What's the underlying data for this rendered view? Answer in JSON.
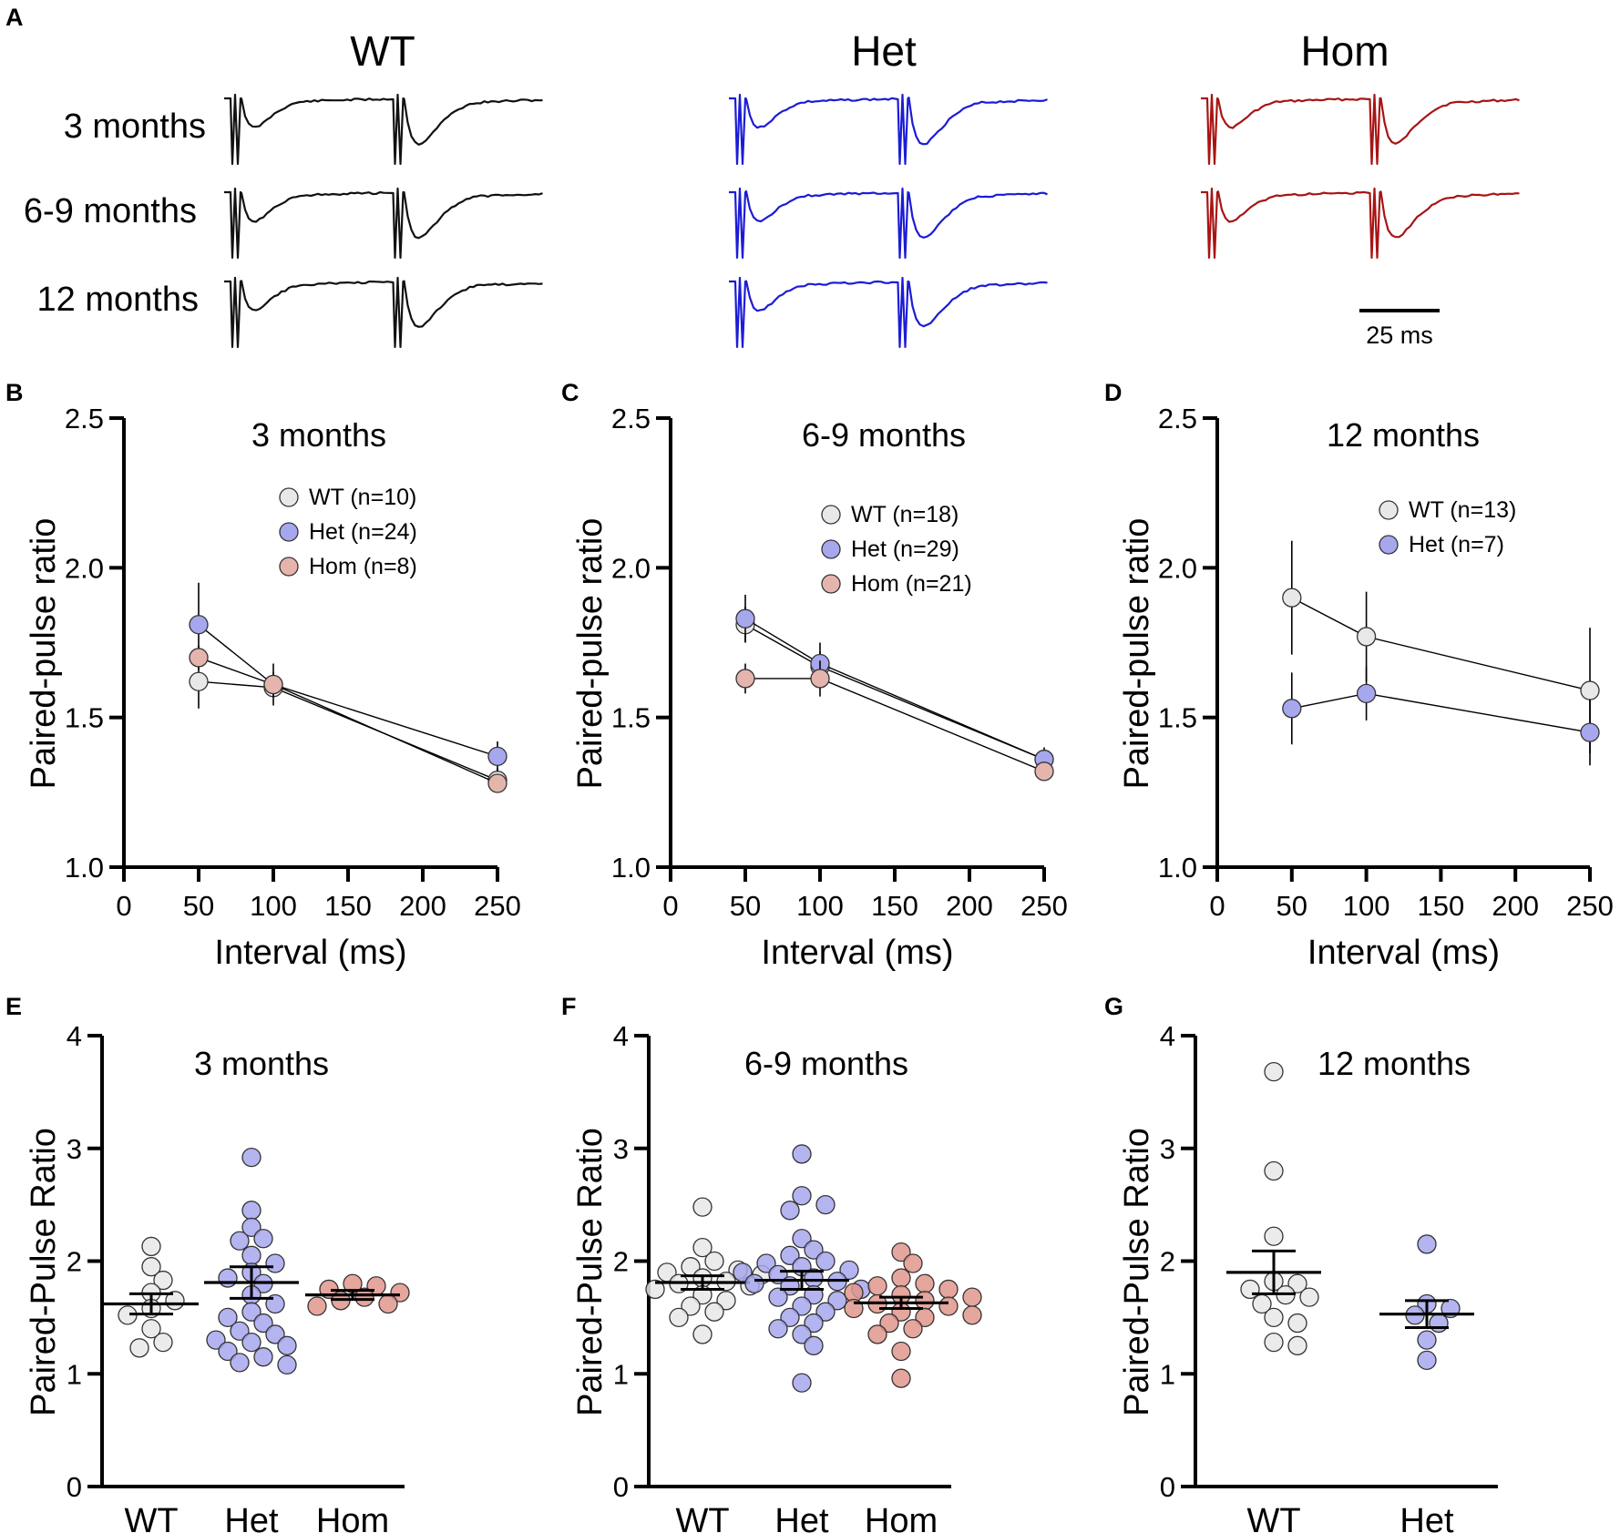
{
  "colors": {
    "WT": "#e8e8e8",
    "Het": "#a7a7ee",
    "Hom": "#e5b4ad",
    "Hom_dot": "#e0968c",
    "trace_WT": "#111111",
    "trace_Het": "#1c1cd6",
    "trace_Hom": "#a81414"
  },
  "panel_a": {
    "letter": "A",
    "columns": [
      "WT",
      "Het",
      "Hom"
    ],
    "rows": [
      "3 months",
      "6-9 months",
      "12 months"
    ],
    "scale_bar_label": "25 ms",
    "traces_present": [
      [
        "WT",
        "Het",
        "Hom"
      ],
      [
        "WT",
        "Het",
        "Hom"
      ],
      [
        "WT",
        "Het"
      ]
    ]
  },
  "chart_data": [
    {
      "id": "B",
      "letter": "B",
      "type": "line",
      "title": "3 months",
      "xlabel": "Interval (ms)",
      "ylabel": "Paired-pulse ratio",
      "x": [
        50,
        100,
        250
      ],
      "xticks": [
        "0",
        "50",
        "100",
        "150",
        "200",
        "250"
      ],
      "yticks": [
        "1.0",
        "1.5",
        "2.0",
        "2.5"
      ],
      "xlim": [
        0,
        250
      ],
      "ylim": [
        1.0,
        2.5
      ],
      "legend": "top-right",
      "series": [
        {
          "group": "WT",
          "name": "WT (n=10)",
          "values": [
            1.62,
            1.6,
            1.29
          ],
          "err": [
            0.09,
            0.03,
            0.04
          ]
        },
        {
          "group": "Het",
          "name": "Het (n=24)",
          "values": [
            1.81,
            1.61,
            1.37
          ],
          "err": [
            0.14,
            0.07,
            0.05
          ]
        },
        {
          "group": "Hom",
          "name": "Hom (n=8)",
          "values": [
            1.7,
            1.61,
            1.28
          ],
          "err": [
            0.04,
            0.04,
            0.03
          ]
        }
      ]
    },
    {
      "id": "C",
      "letter": "C",
      "type": "line",
      "title": "6-9 months",
      "xlabel": "Interval (ms)",
      "ylabel": "Paired-pulse ratio",
      "x": [
        50,
        100,
        250
      ],
      "xticks": [
        "0",
        "50",
        "100",
        "150",
        "200",
        "250"
      ],
      "yticks": [
        "1.0",
        "1.5",
        "2.0",
        "2.5"
      ],
      "xlim": [
        0,
        250
      ],
      "ylim": [
        1.0,
        2.5
      ],
      "legend": "right",
      "series": [
        {
          "group": "WT",
          "name": "WT (n=18)",
          "values": [
            1.81,
            1.67,
            1.36
          ],
          "err": [
            0.06,
            0.05,
            0.03
          ]
        },
        {
          "group": "Het",
          "name": "Het (n=29)",
          "values": [
            1.83,
            1.68,
            1.36
          ],
          "err": [
            0.08,
            0.07,
            0.04
          ]
        },
        {
          "group": "Hom",
          "name": "Hom (n=21)",
          "values": [
            1.63,
            1.63,
            1.32
          ],
          "err": [
            0.05,
            0.06,
            0.03
          ]
        }
      ]
    },
    {
      "id": "D",
      "letter": "D",
      "type": "line",
      "title": "12 months",
      "xlabel": "Interval (ms)",
      "ylabel": "Paired-pulse ratio",
      "x": [
        50,
        100,
        250
      ],
      "xticks": [
        "0",
        "50",
        "100",
        "150",
        "200",
        "250"
      ],
      "yticks": [
        "1.0",
        "1.5",
        "2.0",
        "2.5"
      ],
      "xlim": [
        0,
        250
      ],
      "ylim": [
        1.0,
        2.5
      ],
      "legend": "top-right",
      "series": [
        {
          "group": "WT",
          "name": "WT (n=13)",
          "values": [
            1.9,
            1.77,
            1.59
          ],
          "err": [
            0.19,
            0.15,
            0.21
          ]
        },
        {
          "group": "Het",
          "name": "Het (n=7)",
          "values": [
            1.53,
            1.58,
            1.45
          ],
          "err": [
            0.12,
            0.09,
            0.11
          ]
        }
      ]
    },
    {
      "id": "E",
      "letter": "E",
      "type": "scatter",
      "title": "3 months",
      "xlabel": "",
      "ylabel": "Paired-Pulse Ratio",
      "categories": [
        "WT",
        "Het",
        "Hom"
      ],
      "yticks": [
        "0",
        "1",
        "2",
        "3",
        "4"
      ],
      "ylim": [
        0,
        4
      ],
      "groups": [
        {
          "group": "WT",
          "mean": 1.62,
          "sem": 0.09,
          "points": [
            2.13,
            1.95,
            1.83,
            1.72,
            1.65,
            1.58,
            1.52,
            1.4,
            1.28,
            1.23
          ]
        },
        {
          "group": "Het",
          "mean": 1.81,
          "sem": 0.14,
          "points": [
            2.92,
            2.45,
            2.3,
            2.2,
            2.18,
            2.05,
            1.98,
            1.9,
            1.85,
            1.8,
            1.7,
            1.62,
            1.55,
            1.5,
            1.45,
            1.38,
            1.35,
            1.3,
            1.28,
            1.25,
            1.2,
            1.15,
            1.1,
            1.08
          ]
        },
        {
          "group": "Hom",
          "mean": 1.7,
          "sem": 0.04,
          "points": [
            1.8,
            1.78,
            1.75,
            1.72,
            1.68,
            1.65,
            1.62,
            1.6
          ]
        }
      ]
    },
    {
      "id": "F",
      "letter": "F",
      "type": "scatter",
      "title": "6-9 months",
      "xlabel": "",
      "ylabel": "Paired-Pulse Ratio",
      "categories": [
        "WT",
        "Het",
        "Hom"
      ],
      "yticks": [
        "0",
        "1",
        "2",
        "3",
        "4"
      ],
      "ylim": [
        0,
        4
      ],
      "groups": [
        {
          "group": "WT",
          "mean": 1.81,
          "sem": 0.06,
          "points": [
            2.48,
            2.12,
            2.0,
            1.95,
            1.92,
            1.9,
            1.88,
            1.85,
            1.82,
            1.8,
            1.78,
            1.75,
            1.7,
            1.65,
            1.6,
            1.55,
            1.5,
            1.35
          ]
        },
        {
          "group": "Het",
          "mean": 1.83,
          "sem": 0.08,
          "points": [
            2.95,
            2.58,
            2.5,
            2.45,
            2.2,
            2.1,
            2.05,
            2.0,
            1.98,
            1.95,
            1.92,
            1.9,
            1.88,
            1.85,
            1.82,
            1.8,
            1.78,
            1.75,
            1.7,
            1.68,
            1.65,
            1.6,
            1.55,
            1.5,
            1.45,
            1.4,
            1.35,
            1.25,
            0.92
          ]
        },
        {
          "group": "Hom",
          "mean": 1.63,
          "sem": 0.05,
          "points": [
            2.08,
            1.98,
            1.85,
            1.8,
            1.78,
            1.75,
            1.72,
            1.7,
            1.68,
            1.65,
            1.62,
            1.6,
            1.58,
            1.55,
            1.52,
            1.5,
            1.45,
            1.4,
            1.35,
            1.2,
            0.96
          ]
        }
      ]
    },
    {
      "id": "G",
      "letter": "G",
      "type": "scatter",
      "title": "12 months",
      "xlabel": "",
      "ylabel": "Paired-Pulse Ratio",
      "categories": [
        "WT",
        "Het"
      ],
      "yticks": [
        "0",
        "1",
        "2",
        "3",
        "4"
      ],
      "ylim": [
        0,
        4
      ],
      "groups": [
        {
          "group": "WT",
          "mean": 1.9,
          "sem": 0.19,
          "points": [
            3.68,
            2.8,
            2.22,
            1.82,
            1.8,
            1.75,
            1.7,
            1.68,
            1.62,
            1.5,
            1.45,
            1.28,
            1.25
          ]
        },
        {
          "group": "Het",
          "mean": 1.53,
          "sem": 0.12,
          "points": [
            2.15,
            1.62,
            1.58,
            1.52,
            1.45,
            1.3,
            1.12
          ]
        }
      ]
    }
  ]
}
